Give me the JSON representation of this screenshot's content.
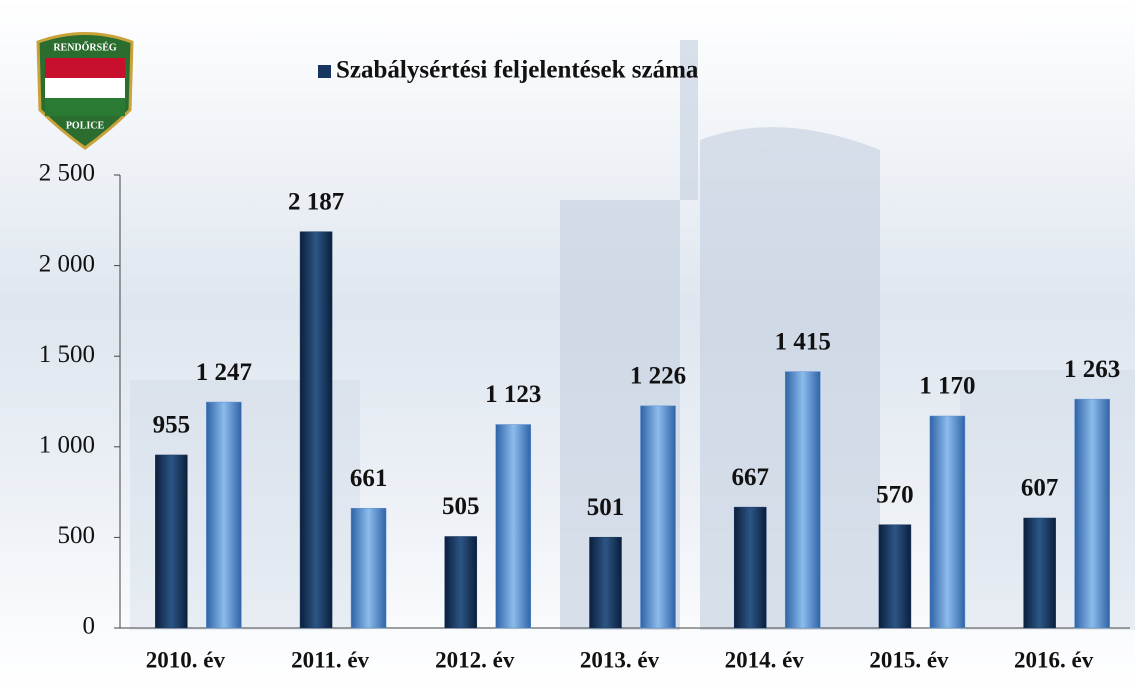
{
  "chart_data": {
    "type": "bar",
    "annotations": [
      "RENDŐRSÉG",
      "POLICE"
    ],
    "categories": [
      "2010. év",
      "2011. év",
      "2012. év",
      "2013. év",
      "2014. év",
      "2015. év",
      "2016. év"
    ],
    "series": [
      {
        "name": "Szabálysértési feljelentések száma",
        "color": "#17355e",
        "values": [
          955,
          2187,
          505,
          501,
          667,
          570,
          607
        ],
        "value_labels": [
          "955",
          "2 187",
          "505",
          "501",
          "667",
          "570",
          "607"
        ]
      },
      {
        "color": "#5b8fd0",
        "values": [
          1247,
          661,
          1123,
          1226,
          1415,
          1170,
          1263
        ],
        "value_labels": [
          "1 247",
          "661",
          "1 123",
          "1 226",
          "1 415",
          "1 170",
          "1 263"
        ]
      }
    ],
    "ylim": [
      0,
      2500
    ],
    "yticks": [
      0,
      500,
      {
        "value": 1000,
        "label": "1 000"
      },
      {
        "value": 1500,
        "label": "1 500"
      },
      {
        "value": 2000,
        "label": "2 000"
      },
      {
        "value": 2500,
        "label": "2 500"
      }
    ]
  }
}
